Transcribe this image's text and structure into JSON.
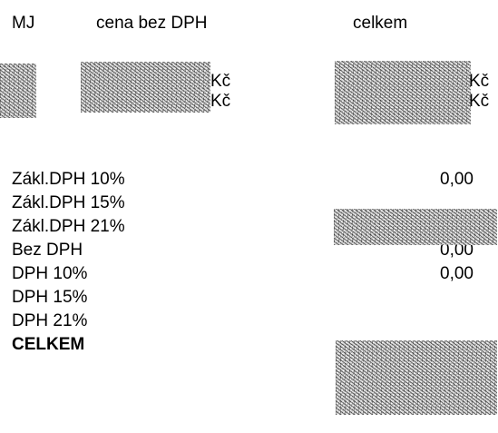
{
  "header": {
    "mj": "MJ",
    "price_no_vat": "cena bez DPH",
    "total": "celkem"
  },
  "items": {
    "currency_1": "Kč",
    "currency_2": "Kč",
    "total_currency_1": "Kč",
    "total_currency_2": "Kč"
  },
  "summary": {
    "labels": [
      "Zákl.DPH 10%",
      "Zákl.DPH 15%",
      "Zákl.DPH 21%",
      "Bez DPH",
      "DPH 10%",
      "DPH 15%",
      "DPH 21%",
      "CELKEM"
    ],
    "values": {
      "base_10": "0,00",
      "no_vat": "0,00",
      "vat_10": "0,00"
    }
  }
}
